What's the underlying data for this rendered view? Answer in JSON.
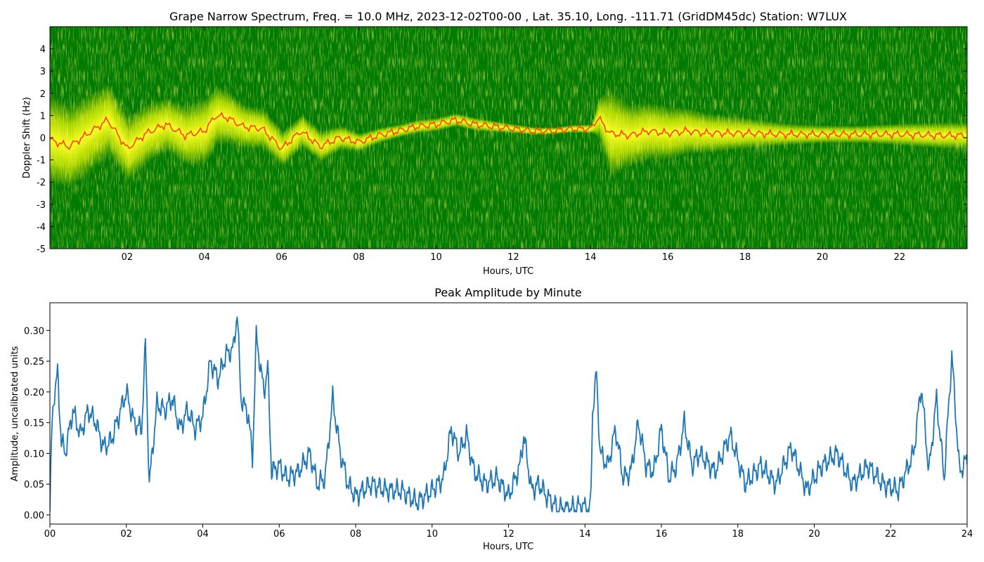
{
  "chart_data": [
    {
      "type": "heatmap",
      "title": "Grape Narrow Spectrum, Freq. = 10.0 MHz, 2023-12-02T00-00 , Lat.  35.10, Long. -111.71 (GridDM45dc) Station: W7LUX",
      "xlabel": "Hours, UTC",
      "ylabel": "Doppler Shift (Hz)",
      "xlim": [
        0,
        23.75
      ],
      "ylim": [
        -5,
        5
      ],
      "x_ticks": [
        "02",
        "04",
        "06",
        "08",
        "10",
        "12",
        "14",
        "16",
        "18",
        "20",
        "22"
      ],
      "x_tick_values": [
        2,
        4,
        6,
        8,
        10,
        12,
        14,
        16,
        18,
        20,
        22
      ],
      "y_ticks": [
        "-5",
        "-4",
        "-3",
        "-2",
        "-1",
        "0",
        "1",
        "2",
        "3",
        "4"
      ],
      "y_tick_values": [
        -5,
        -4,
        -3,
        -2,
        -1,
        0,
        1,
        2,
        3,
        4
      ],
      "colors": {
        "background": "#007a00",
        "mid": "#ffff00",
        "peak": "#ff4000"
      },
      "peak_doppler_trace": {
        "x": [
          0,
          0.5,
          1.0,
          1.5,
          2.0,
          2.5,
          3.0,
          3.5,
          4.0,
          4.3,
          4.6,
          5.0,
          5.5,
          6.0,
          6.5,
          7.0,
          7.5,
          8.0,
          8.5,
          9.0,
          9.5,
          10.0,
          10.5,
          11.0,
          11.5,
          12.0,
          12.5,
          13.0,
          13.5,
          14.0,
          14.2,
          14.5,
          15.0,
          15.5,
          16.0,
          16.5,
          17.0,
          18.0,
          19.0,
          20.0,
          21.0,
          22.0,
          23.0,
          23.75
        ],
        "y": [
          -0.1,
          -0.4,
          0.2,
          0.8,
          -0.5,
          0.2,
          0.6,
          0.1,
          0.3,
          1.0,
          0.9,
          0.5,
          0.4,
          -0.5,
          0.3,
          -0.4,
          0.0,
          -0.2,
          0.1,
          0.3,
          0.5,
          0.6,
          0.8,
          0.6,
          0.5,
          0.4,
          0.3,
          0.3,
          0.4,
          0.4,
          0.9,
          0.2,
          0.1,
          0.3,
          0.2,
          0.3,
          0.2,
          0.2,
          0.15,
          0.15,
          0.15,
          0.15,
          0.1,
          0.1
        ]
      },
      "spread_hz": {
        "x": [
          0,
          1,
          2,
          3,
          4,
          5,
          6,
          7,
          8,
          9,
          10,
          11,
          12,
          13,
          14,
          14.5,
          15,
          16,
          17,
          18,
          19,
          20,
          21,
          22,
          23,
          23.75
        ],
        "y": [
          2.0,
          1.8,
          1.5,
          1.2,
          1.5,
          1.0,
          0.8,
          0.7,
          0.4,
          0.3,
          0.3,
          0.3,
          0.2,
          0.15,
          0.2,
          2.0,
          1.4,
          1.2,
          0.9,
          0.7,
          0.5,
          0.4,
          0.4,
          0.5,
          0.6,
          0.6
        ]
      }
    },
    {
      "type": "line",
      "title": "Peak Amplitude by Minute",
      "xlabel": "Hours, UTC",
      "ylabel": "Amplitude, uncalibrated units",
      "xlim": [
        0,
        24
      ],
      "ylim": [
        -0.015,
        0.345
      ],
      "x_ticks": [
        "00",
        "02",
        "04",
        "06",
        "08",
        "10",
        "12",
        "14",
        "16",
        "18",
        "20",
        "22",
        "24"
      ],
      "x_tick_values": [
        0,
        2,
        4,
        6,
        8,
        10,
        12,
        14,
        16,
        18,
        20,
        22,
        24
      ],
      "y_ticks": [
        "0.00",
        "0.05",
        "0.10",
        "0.15",
        "0.20",
        "0.25",
        "0.30"
      ],
      "y_tick_values": [
        0.0,
        0.05,
        0.1,
        0.15,
        0.2,
        0.25,
        0.3
      ],
      "line_color": "#1f77b4",
      "series": [
        {
          "x": [
            0,
            0.05,
            0.1,
            0.2,
            0.3,
            0.4,
            0.6,
            0.8,
            1.0,
            1.2,
            1.4,
            1.6,
            1.8,
            2.0,
            2.2,
            2.4,
            2.5,
            2.6,
            2.8,
            3.0,
            3.2,
            3.4,
            3.6,
            3.8,
            4.0,
            4.2,
            4.4,
            4.6,
            4.8,
            4.9,
            5.0,
            5.2,
            5.3,
            5.4,
            5.6,
            5.7,
            5.8,
            6.0,
            6.2,
            6.5,
            6.8,
            7.0,
            7.2,
            7.4,
            7.6,
            7.8,
            8.0,
            8.4,
            8.8,
            9.2,
            9.6,
            10.0,
            10.3,
            10.5,
            10.7,
            10.9,
            11.1,
            11.4,
            11.7,
            12.0,
            12.3,
            12.4,
            12.6,
            12.8,
            13.0,
            13.3,
            13.6,
            13.9,
            14.15,
            14.2,
            14.3,
            14.4,
            14.6,
            14.8,
            15.0,
            15.2,
            15.4,
            15.6,
            15.8,
            16.0,
            16.2,
            16.4,
            16.6,
            16.8,
            17.0,
            17.4,
            17.8,
            18.2,
            18.6,
            19.0,
            19.4,
            19.8,
            20.2,
            20.6,
            21.0,
            21.4,
            21.8,
            22.2,
            22.6,
            22.8,
            23.0,
            23.2,
            23.4,
            23.6,
            23.8,
            24.0
          ],
          "y": [
            0.005,
            0.14,
            0.19,
            0.23,
            0.12,
            0.1,
            0.17,
            0.13,
            0.17,
            0.15,
            0.11,
            0.12,
            0.16,
            0.2,
            0.15,
            0.14,
            0.28,
            0.05,
            0.18,
            0.17,
            0.19,
            0.14,
            0.17,
            0.14,
            0.16,
            0.25,
            0.22,
            0.26,
            0.27,
            0.33,
            0.19,
            0.16,
            0.09,
            0.29,
            0.2,
            0.24,
            0.07,
            0.08,
            0.06,
            0.07,
            0.1,
            0.05,
            0.06,
            0.19,
            0.1,
            0.05,
            0.03,
            0.05,
            0.04,
            0.04,
            0.02,
            0.04,
            0.06,
            0.14,
            0.1,
            0.13,
            0.07,
            0.05,
            0.06,
            0.03,
            0.08,
            0.13,
            0.04,
            0.05,
            0.03,
            0.01,
            0.01,
            0.015,
            0.01,
            0.17,
            0.23,
            0.1,
            0.08,
            0.14,
            0.06,
            0.07,
            0.15,
            0.08,
            0.07,
            0.14,
            0.06,
            0.08,
            0.15,
            0.08,
            0.1,
            0.07,
            0.13,
            0.05,
            0.08,
            0.05,
            0.11,
            0.04,
            0.08,
            0.1,
            0.05,
            0.08,
            0.05,
            0.04,
            0.1,
            0.21,
            0.07,
            0.19,
            0.06,
            0.26,
            0.07,
            0.09
          ]
        }
      ]
    }
  ]
}
